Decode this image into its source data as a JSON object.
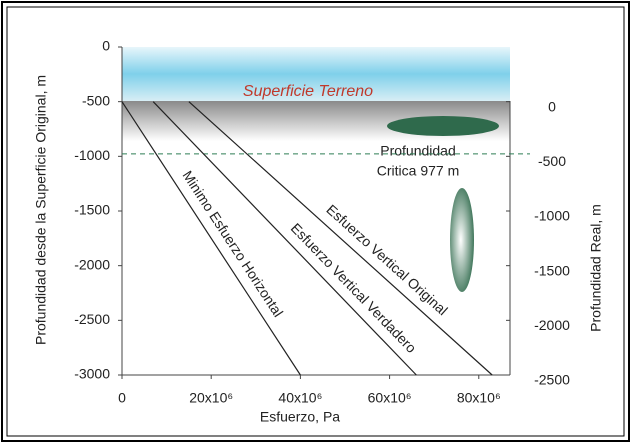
{
  "chart_data": {
    "type": "line",
    "title": "Superficie Terreno",
    "x_label": "Esfuerzo, Pa",
    "y_label": "Profundidad desde la Superficie Original, m",
    "y2_label": "Profundidad Real, m",
    "xlim": [
      0,
      87000000
    ],
    "ylim": [
      -3000,
      0
    ],
    "y2lim": [
      -2500,
      500
    ],
    "xticks": [
      0,
      {
        "value": 20000000,
        "label": "20x10⁶"
      },
      {
        "value": 40000000,
        "label": "40x10⁶"
      },
      {
        "value": 60000000,
        "label": "60x10⁶"
      },
      {
        "value": 80000000,
        "label": "80x10⁶"
      }
    ],
    "yticks": [
      0,
      -500,
      -1000,
      -1500,
      -2000,
      -2500,
      -3000
    ],
    "y2ticks": [
      0,
      -500,
      -1000,
      -1500,
      -2000,
      -2500
    ],
    "critical_depth": -977,
    "annotation": [
      "Profundidad",
      "Critica 977 m"
    ],
    "series": [
      {
        "name": "Minimo Esfuerzo Horizontal",
        "color": "#222222",
        "x": [
          0,
          40000000
        ],
        "values": [
          -500,
          -3000
        ]
      },
      {
        "name": "Esfuerzo Vertical Verdadero",
        "color": "#222222",
        "x": [
          7000000,
          66000000
        ],
        "values": [
          -500,
          -3000
        ]
      },
      {
        "name": "Esfuerzo Vertical Original",
        "color": "#222222",
        "x": [
          15000000,
          83000000
        ],
        "values": [
          -500,
          -3000
        ]
      }
    ]
  }
}
